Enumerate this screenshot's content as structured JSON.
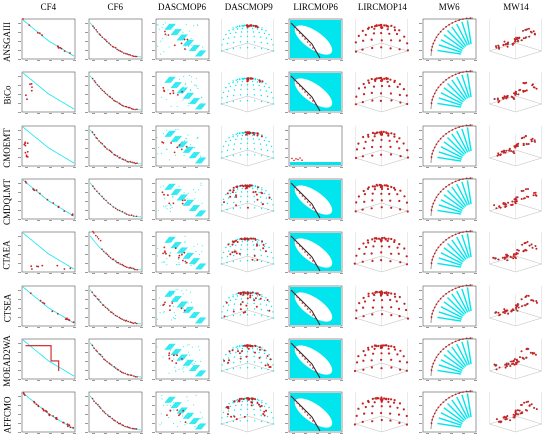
{
  "chart_data": {
    "type": "scatter",
    "title": "",
    "columns": [
      "CF4",
      "CF6",
      "DASCMOP6",
      "DASCMOP9",
      "LIRCMOP6",
      "LIRCMOP14",
      "MW6",
      "MW14"
    ],
    "rows": [
      "ANSGAIII",
      "BiCo",
      "CMOEMT",
      "CMDQLMT",
      "CTAEA",
      "CTSEA",
      "MOEAD2WA",
      "AFFCMO"
    ],
    "series": [
      {
        "name": "",
        "color": "#00e5ee",
        "role": "true Pareto front / feasible region"
      },
      {
        "name": "",
        "color": "#cc1f1f",
        "role": "obtained solutions"
      }
    ],
    "colors": {
      "cyan": "#00e5ee",
      "red": "#cc1f1f",
      "frame": "#555555"
    }
  }
}
